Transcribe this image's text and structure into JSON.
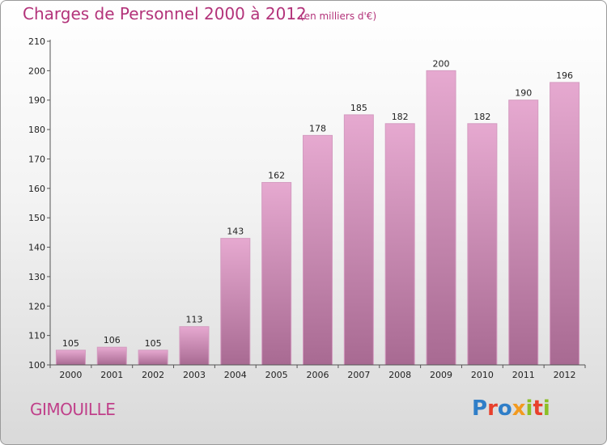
{
  "header": {
    "title": "Charges de Personnel 2000 à 2012",
    "subtitle": "(en milliers d'€)"
  },
  "footer": {
    "commune": "GIMOUILLE",
    "logo_text": "Proxiti",
    "logo_colors": [
      "#2f7ec8",
      "#e8402c",
      "#2f7ec8",
      "#f29a1f",
      "#8cbf26",
      "#e8402c",
      "#8cbf26"
    ]
  },
  "colors": {
    "accent": "#b3337a",
    "bar_top": "#e6a9d0",
    "bar_bottom": "#a86a92"
  },
  "chart_data": {
    "type": "bar",
    "title": "Charges de Personnel 2000 à 2012",
    "subtitle": "(en milliers d'€)",
    "categories": [
      "2000",
      "2001",
      "2002",
      "2003",
      "2004",
      "2005",
      "2006",
      "2007",
      "2008",
      "2009",
      "2010",
      "2011",
      "2012"
    ],
    "values": [
      105,
      106,
      105,
      113,
      143,
      162,
      178,
      185,
      182,
      200,
      182,
      190,
      196
    ],
    "value_labels": [
      "105",
      "106",
      "105",
      "113",
      "143",
      "162",
      "178",
      "185",
      "182",
      "200",
      "182",
      "190",
      "196"
    ],
    "ylim": [
      100,
      210
    ],
    "yticks": [
      "100",
      "110",
      "120",
      "130",
      "140",
      "150",
      "160",
      "170",
      "180",
      "190",
      "200",
      "210"
    ],
    "grid": false,
    "legend": "none"
  }
}
